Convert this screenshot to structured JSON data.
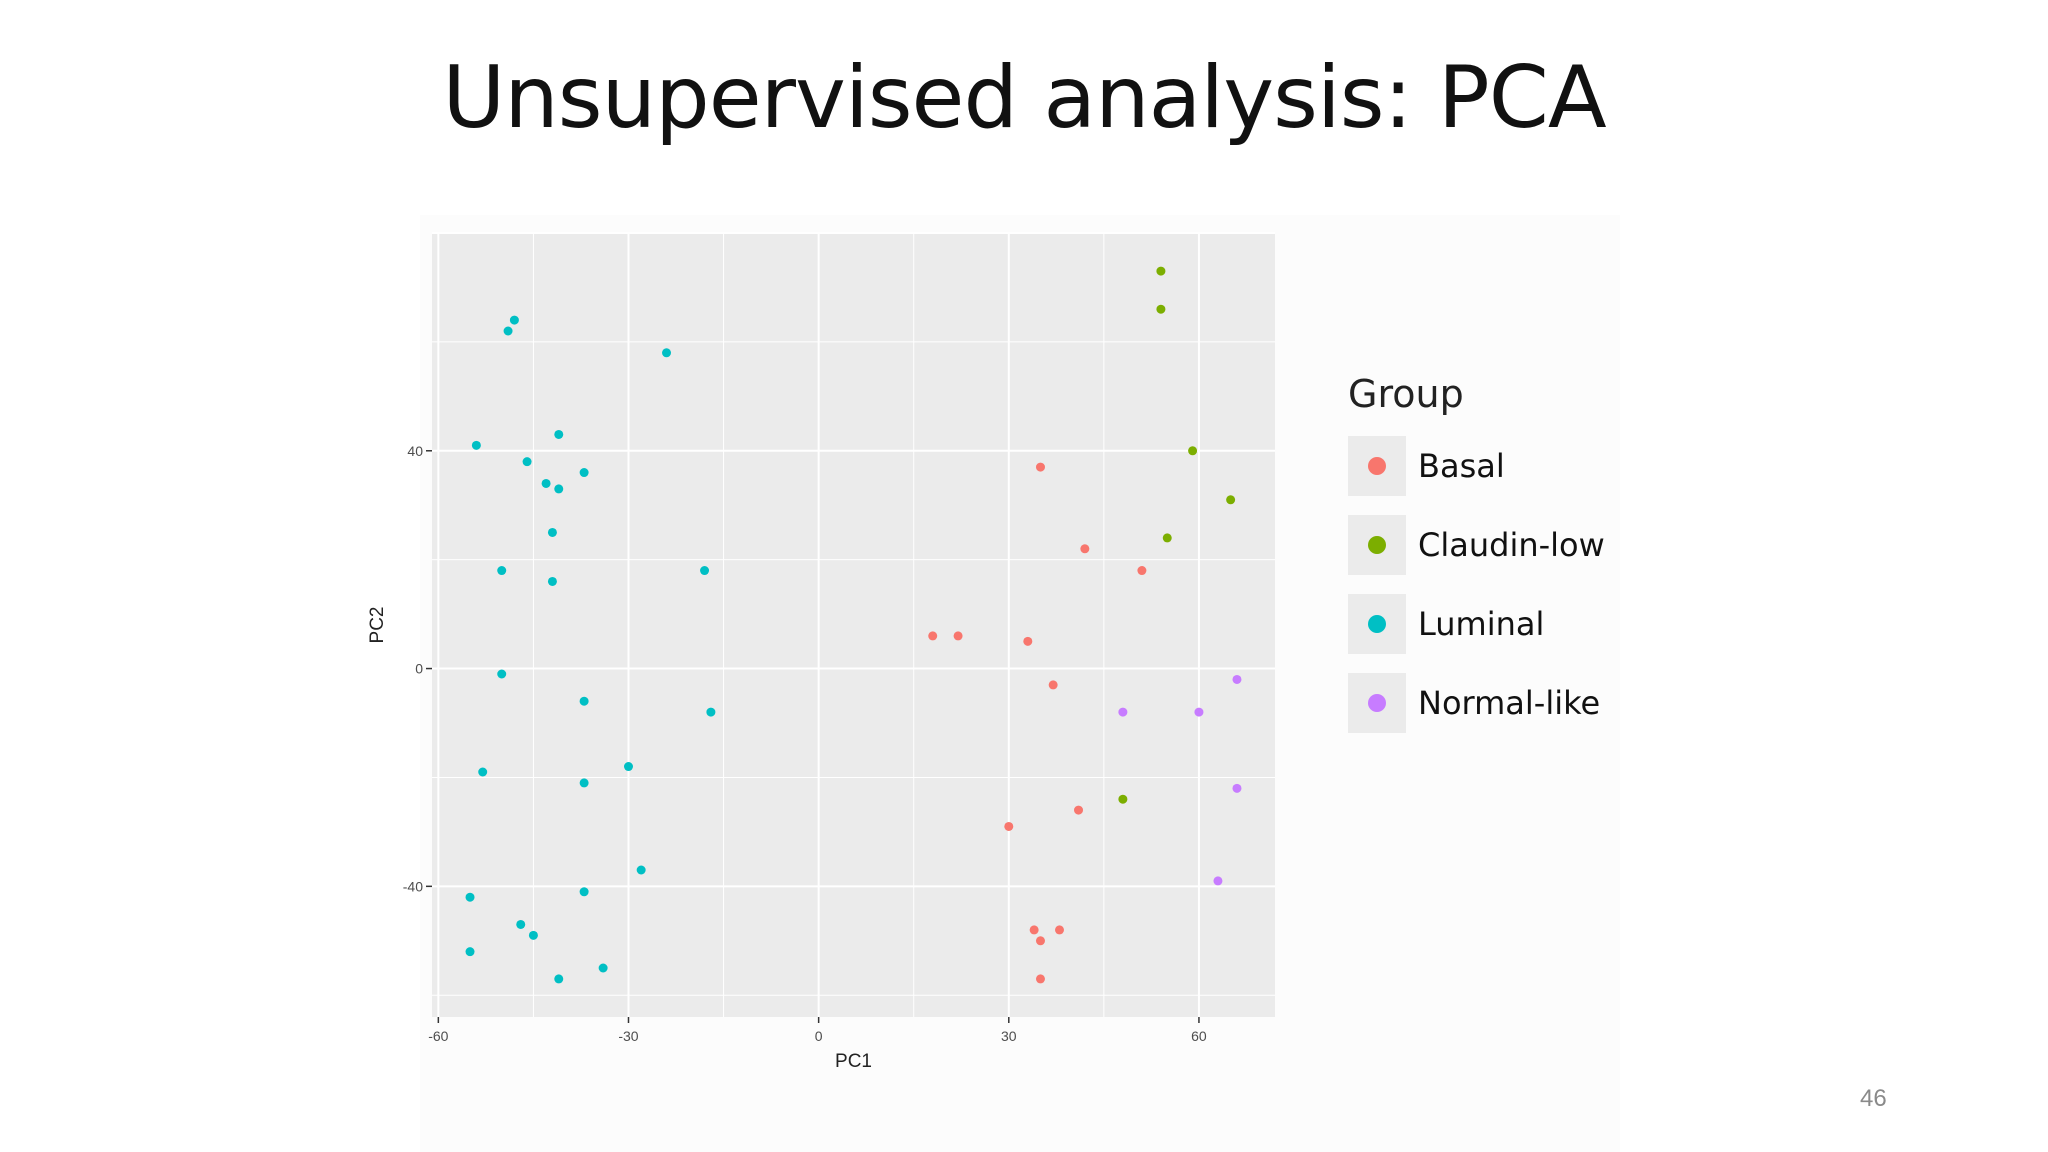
{
  "slide": {
    "title": "Unsupervised analysis: PCA",
    "page_number": "46"
  },
  "chart_data": {
    "type": "scatter",
    "xlabel": "PC1",
    "ylabel": "PC2",
    "xlim": [
      -61,
      72
    ],
    "ylim": [
      -64,
      80
    ],
    "xticks": [
      -60,
      -30,
      0,
      30,
      60
    ],
    "yticks": [
      -40,
      0,
      40
    ],
    "xtick_labels": [
      "-60",
      "-30",
      "0",
      "30",
      "60"
    ],
    "ytick_labels": [
      "-40",
      "0",
      "40"
    ],
    "grid": true,
    "panel_color": "#ebebeb",
    "legend_title": "Group",
    "legend_position": "right",
    "series": [
      {
        "name": "Basal",
        "color": "#f8766d",
        "points": [
          [
            35,
            37
          ],
          [
            42,
            22
          ],
          [
            51,
            18
          ],
          [
            18,
            6
          ],
          [
            22,
            6
          ],
          [
            33,
            5
          ],
          [
            37,
            -3
          ],
          [
            41,
            -26
          ],
          [
            30,
            -29
          ],
          [
            38,
            -48
          ],
          [
            34,
            -48
          ],
          [
            35,
            -50
          ],
          [
            35,
            -57
          ]
        ]
      },
      {
        "name": "Claudin-low",
        "color": "#7cae00",
        "points": [
          [
            54,
            73
          ],
          [
            54,
            66
          ],
          [
            59,
            40
          ],
          [
            65,
            31
          ],
          [
            55,
            24
          ],
          [
            48,
            -24
          ]
        ]
      },
      {
        "name": "Luminal",
        "color": "#00bfc4",
        "points": [
          [
            -48,
            64
          ],
          [
            -49,
            62
          ],
          [
            -24,
            58
          ],
          [
            -41,
            43
          ],
          [
            -54,
            41
          ],
          [
            -46,
            38
          ],
          [
            -37,
            36
          ],
          [
            -43,
            34
          ],
          [
            -41,
            33
          ],
          [
            -42,
            25
          ],
          [
            -50,
            18
          ],
          [
            -42,
            16
          ],
          [
            -18,
            18
          ],
          [
            -50,
            -1
          ],
          [
            -37,
            -6
          ],
          [
            -17,
            -8
          ],
          [
            -53,
            -19
          ],
          [
            -37,
            -21
          ],
          [
            -30,
            -18
          ],
          [
            -28,
            -37
          ],
          [
            -55,
            -42
          ],
          [
            -37,
            -41
          ],
          [
            -47,
            -47
          ],
          [
            -45,
            -49
          ],
          [
            -55,
            -52
          ],
          [
            -34,
            -55
          ],
          [
            -41,
            -57
          ]
        ]
      },
      {
        "name": "Normal-like",
        "color": "#c77cff",
        "points": [
          [
            48,
            -8
          ],
          [
            60,
            -8
          ],
          [
            66,
            -2
          ],
          [
            66,
            -22
          ],
          [
            63,
            -39
          ]
        ]
      }
    ]
  }
}
